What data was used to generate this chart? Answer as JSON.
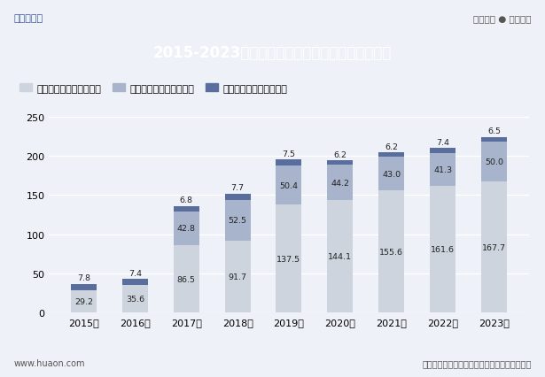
{
  "title": "2015-2023年延庆区第一、第二及第三产业增加值",
  "years": [
    "2015年",
    "2016年",
    "2017年",
    "2018年",
    "2019年",
    "2020年",
    "2021年",
    "2022年",
    "2023年"
  ],
  "series1_label": "第三产业增加值（亿元）",
  "series2_label": "第二产业增加值（亿元）",
  "series3_label": "第一产业增加值（亿元）",
  "series1": [
    29.2,
    35.6,
    86.5,
    91.7,
    137.5,
    144.1,
    155.6,
    161.6,
    167.7
  ],
  "series2": [
    0.0,
    0.0,
    42.8,
    52.5,
    50.4,
    44.2,
    43.0,
    41.3,
    50.0
  ],
  "series3": [
    7.8,
    7.4,
    6.8,
    7.7,
    7.5,
    6.2,
    6.2,
    7.4,
    6.5
  ],
  "color1": "#cdd4de",
  "color2": "#a8b4cb",
  "color3": "#5a6e9e",
  "title_bg_color": "#3c5a96",
  "title_text_color": "#ffffff",
  "bg_color": "#eef1f7",
  "ylim": [
    0,
    260
  ],
  "yticks": [
    0,
    50,
    100,
    150,
    200,
    250
  ],
  "footer_left": "www.huaon.com",
  "footer_right": "数据来源：北京市统计局；华经产业研究院整理",
  "top_left": "华经情报网",
  "top_right": "专业严谨 ● 客观科学",
  "label_s1_2015": "29.2",
  "label_s1_2016": "35.6",
  "bar_width": 0.5
}
